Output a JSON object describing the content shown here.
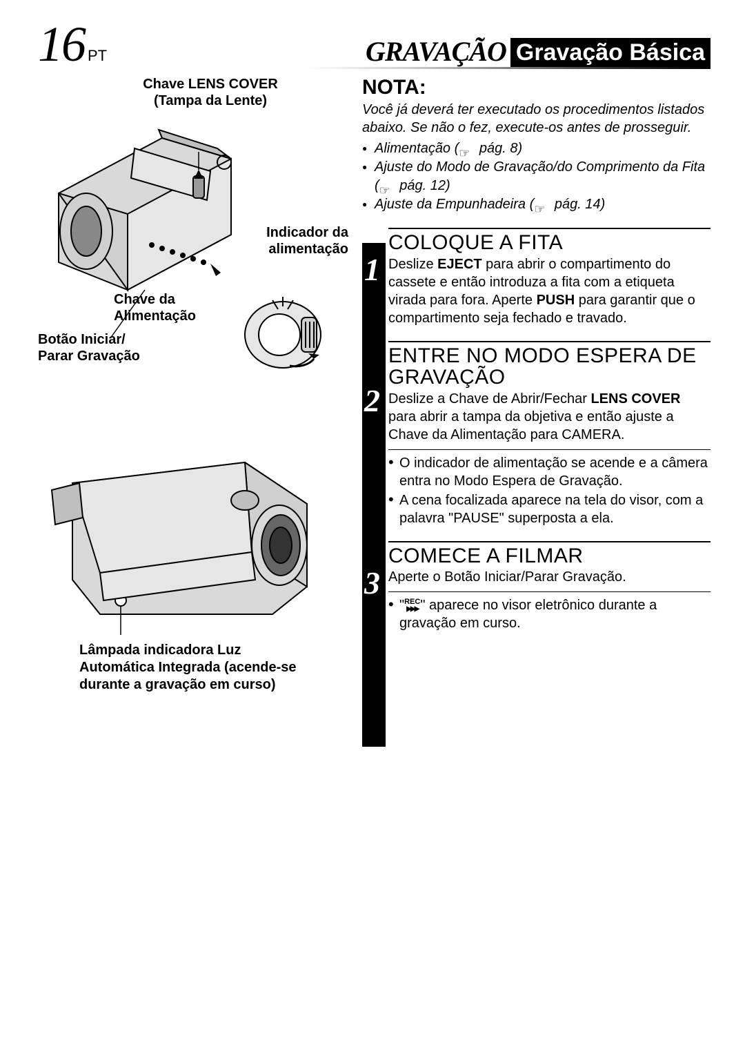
{
  "page": {
    "number": "16",
    "lang": "PT",
    "section": "GRAVAÇÃO",
    "subsection": "Gravação Básica"
  },
  "diagram1": {
    "label_top": "Chave LENS COVER\n(Tampa da Lente)",
    "label_right": "Indicador da alimentação",
    "label_mid": "Chave da Alimentação",
    "label_bot": "Botão Iniciar/\nParar Gravação"
  },
  "diagram2": {
    "label": "Lâmpada indicadora Luz Automática Integrada (acende-se durante a gravação em curso)"
  },
  "nota": {
    "title": "NOTA:",
    "intro": "Você já deverá ter executado os procedimentos listados abaixo. Se não o fez, execute-os antes de prosseguir.",
    "items": [
      {
        "text": "Alimentação",
        "ref": "pág. 8"
      },
      {
        "text": "Ajuste do Modo de Gravação/do Comprimento da Fita",
        "ref": "pág. 12"
      },
      {
        "text": "Ajuste da Empunhadeira",
        "ref": "pág. 14"
      }
    ]
  },
  "steps": [
    {
      "num": "1",
      "title": "COLOQUE A FITA",
      "body_pre": "Deslize ",
      "body_b1": "EJECT",
      "body_mid": " para abrir o compartimento do cassete e então introduza a fita com a etiqueta virada para fora. Aperte ",
      "body_b2": "PUSH",
      "body_post": " para garantir que o compartimento seja fechado e travado.",
      "sublist": []
    },
    {
      "num": "2",
      "title": "ENTRE NO MODO ESPERA DE GRAVAÇÃO",
      "body_pre": "Deslize a Chave de Abrir/Fechar ",
      "body_b1": "LENS COVER",
      "body_mid": " para abrir a tampa da objetiva e então ajuste a Chave da Alimentação para CAMERA.",
      "body_b2": "",
      "body_post": "",
      "sublist": [
        "O indicador de alimentação se acende e a câmera entra no Modo Espera de Gravação.",
        "A cena focalizada aparece na tela do visor, com a palavra \"PAUSE\" superposta a ela."
      ]
    },
    {
      "num": "3",
      "title": "COMECE A FILMAR",
      "body_pre": "Aperte o Botão Iniciar/Parar Gravação.",
      "body_b1": "",
      "body_mid": "",
      "body_b2": "",
      "body_post": "",
      "sublist_rec": "\" aparece no visor eletrônico durante a gravação em curso."
    }
  ],
  "colors": {
    "text": "#000000",
    "bg": "#ffffff",
    "camera_body": "#d9d9d9",
    "camera_dark": "#666666",
    "camera_outline": "#000000"
  }
}
